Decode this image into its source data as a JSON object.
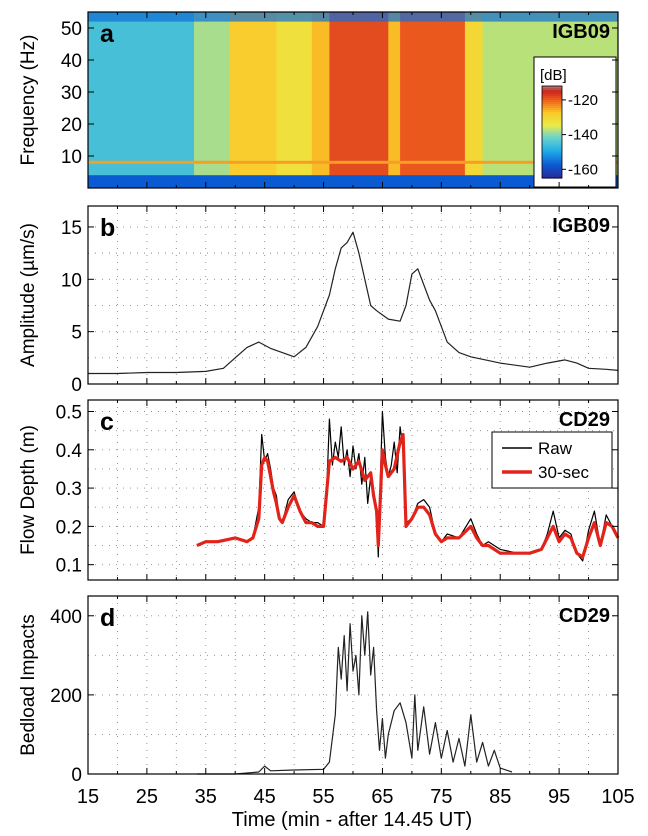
{
  "figure": {
    "xlabel": "Time (min - after 14.45 UT)",
    "xlim": [
      15,
      105
    ],
    "xticks": [
      15,
      25,
      35,
      45,
      55,
      65,
      75,
      85,
      95,
      105
    ]
  },
  "chart_data": [
    {
      "type": "heatmap",
      "panel_letter": "a",
      "station": "IGB09",
      "ylabel": "Frequency (Hz)",
      "xlim": [
        15,
        105
      ],
      "ylim": [
        0,
        55
      ],
      "yticks": [
        10,
        20,
        30,
        40,
        50
      ],
      "colorbar": {
        "unit": "[dB]",
        "range": [
          -165,
          -112
        ],
        "ticks": [
          -120,
          -140,
          -160
        ]
      },
      "bands": [
        {
          "x": [
            15,
            33
          ],
          "level_db": -145
        },
        {
          "x": [
            33,
            39
          ],
          "level_db": -138
        },
        {
          "x": [
            39,
            47
          ],
          "level_db": -128
        },
        {
          "x": [
            47,
            53
          ],
          "level_db": -132
        },
        {
          "x": [
            53,
            56
          ],
          "level_db": -126
        },
        {
          "x": [
            56,
            66
          ],
          "level_db": -118
        },
        {
          "x": [
            66,
            68
          ],
          "level_db": -126
        },
        {
          "x": [
            68,
            79
          ],
          "level_db": -119
        },
        {
          "x": [
            79,
            82
          ],
          "level_db": -130
        },
        {
          "x": [
            82,
            105
          ],
          "level_db": -137
        }
      ]
    },
    {
      "type": "line",
      "panel_letter": "b",
      "station": "IGB09",
      "ylabel": "Amplitude (µm/s)",
      "ylim": [
        0,
        17
      ],
      "yticks": [
        0,
        5,
        10,
        15
      ],
      "x": [
        15,
        20,
        25,
        30,
        35,
        38,
        40,
        42,
        44,
        46,
        48,
        50,
        52,
        54,
        56,
        57,
        58,
        59,
        60,
        61,
        62,
        63,
        64,
        66,
        68,
        69,
        70,
        71,
        72,
        73,
        74,
        76,
        78,
        80,
        85,
        90,
        93,
        96,
        98,
        100,
        103,
        105
      ],
      "y": [
        1.0,
        1.0,
        1.1,
        1.1,
        1.2,
        1.5,
        2.5,
        3.5,
        4.0,
        3.4,
        3.0,
        2.6,
        3.5,
        5.5,
        8.5,
        11.0,
        13.0,
        13.5,
        14.5,
        12.5,
        10.0,
        7.5,
        7.0,
        6.2,
        6.0,
        7.5,
        10.5,
        11.0,
        9.5,
        8.0,
        7.0,
        4.0,
        3.0,
        2.6,
        2.0,
        1.6,
        2.0,
        2.3,
        2.0,
        1.5,
        1.4,
        1.3
      ]
    },
    {
      "type": "line",
      "panel_letter": "c",
      "station": "CD29",
      "ylabel": "Flow Depth (m)",
      "ylim": [
        0.06,
        0.53
      ],
      "yticks": [
        0.1,
        0.2,
        0.3,
        0.4,
        0.5
      ],
      "legend_position": "upper-right",
      "series": [
        {
          "name": "Raw",
          "color": "#000000",
          "x": [
            33.5,
            35,
            37,
            40,
            42,
            43,
            44,
            44.5,
            45,
            45.5,
            46,
            46.5,
            47,
            47.5,
            48,
            49,
            50,
            51,
            52,
            53,
            54,
            55,
            55.5,
            56,
            56.5,
            57,
            57.5,
            58,
            58.5,
            59,
            59.5,
            60,
            60.5,
            61,
            61.5,
            62,
            62.5,
            63,
            63.5,
            64,
            64.3,
            64.6,
            65,
            65.5,
            66,
            66.5,
            67,
            67.5,
            68,
            68.5,
            69,
            70,
            71,
            72,
            73,
            74,
            75,
            76,
            78,
            80,
            81,
            82,
            83,
            85,
            88,
            90,
            92,
            93,
            94,
            95,
            96,
            97,
            98,
            99,
            100,
            101,
            102,
            103,
            104,
            105
          ],
          "y": [
            0.15,
            0.16,
            0.16,
            0.17,
            0.16,
            0.17,
            0.25,
            0.44,
            0.37,
            0.39,
            0.35,
            0.3,
            0.28,
            0.22,
            0.21,
            0.27,
            0.29,
            0.24,
            0.22,
            0.21,
            0.21,
            0.2,
            0.28,
            0.48,
            0.36,
            0.42,
            0.38,
            0.46,
            0.36,
            0.4,
            0.33,
            0.41,
            0.35,
            0.39,
            0.31,
            0.38,
            0.26,
            0.33,
            0.28,
            0.24,
            0.12,
            0.3,
            0.5,
            0.38,
            0.33,
            0.36,
            0.42,
            0.34,
            0.46,
            0.4,
            0.21,
            0.22,
            0.26,
            0.27,
            0.25,
            0.18,
            0.16,
            0.18,
            0.17,
            0.22,
            0.18,
            0.15,
            0.16,
            0.14,
            0.13,
            0.13,
            0.14,
            0.18,
            0.24,
            0.17,
            0.19,
            0.18,
            0.13,
            0.11,
            0.19,
            0.24,
            0.15,
            0.23,
            0.2,
            0.17
          ]
        },
        {
          "name": "30-sec",
          "color": "#e2231a",
          "x": [
            33.5,
            35,
            37,
            40,
            42,
            43,
            44,
            44.5,
            45,
            45.5,
            46,
            46.5,
            47,
            47.5,
            48,
            49,
            50,
            51,
            52,
            53,
            54,
            55,
            56,
            57,
            58,
            59,
            60,
            61,
            62,
            63,
            63.5,
            64,
            64.3,
            65,
            65.5,
            66,
            67,
            68,
            68.5,
            69,
            70,
            71,
            72,
            73,
            74,
            75,
            76,
            78,
            80,
            81,
            82,
            83,
            85,
            88,
            90,
            92,
            93,
            94,
            95,
            96,
            97,
            98,
            99,
            100,
            101,
            102,
            103,
            104,
            105
          ],
          "y": [
            0.15,
            0.16,
            0.16,
            0.17,
            0.16,
            0.17,
            0.22,
            0.36,
            0.38,
            0.37,
            0.33,
            0.29,
            0.26,
            0.22,
            0.21,
            0.25,
            0.28,
            0.24,
            0.21,
            0.21,
            0.2,
            0.2,
            0.37,
            0.38,
            0.37,
            0.38,
            0.35,
            0.37,
            0.32,
            0.34,
            0.28,
            0.24,
            0.15,
            0.4,
            0.36,
            0.33,
            0.35,
            0.42,
            0.44,
            0.2,
            0.22,
            0.25,
            0.25,
            0.23,
            0.18,
            0.16,
            0.17,
            0.17,
            0.2,
            0.17,
            0.15,
            0.15,
            0.13,
            0.13,
            0.13,
            0.14,
            0.17,
            0.2,
            0.16,
            0.18,
            0.17,
            0.13,
            0.12,
            0.17,
            0.21,
            0.15,
            0.21,
            0.2,
            0.17
          ]
        }
      ]
    },
    {
      "type": "line",
      "panel_letter": "d",
      "station": "CD29",
      "ylabel": "Bedload Impacts",
      "ylim": [
        0,
        450
      ],
      "yticks": [
        0,
        200,
        400
      ],
      "x": [
        33.5,
        40,
        44,
        45,
        46,
        50,
        55,
        56,
        57,
        57.5,
        58,
        58.5,
        59,
        59.5,
        60,
        60.5,
        61,
        61.5,
        62,
        62.5,
        63,
        63.5,
        64,
        64.5,
        65,
        65.5,
        66,
        67,
        68,
        69,
        70,
        70.5,
        71,
        72,
        73,
        74,
        75,
        76,
        77,
        78,
        79,
        80,
        81,
        82,
        83,
        84,
        85,
        87
      ],
      "y": [
        0,
        0,
        5,
        20,
        8,
        10,
        12,
        30,
        150,
        320,
        240,
        350,
        210,
        380,
        260,
        300,
        200,
        400,
        300,
        410,
        250,
        320,
        160,
        60,
        140,
        40,
        100,
        160,
        180,
        130,
        40,
        200,
        60,
        170,
        50,
        130,
        40,
        110,
        30,
        90,
        20,
        150,
        30,
        80,
        20,
        60,
        15,
        5
      ]
    }
  ]
}
